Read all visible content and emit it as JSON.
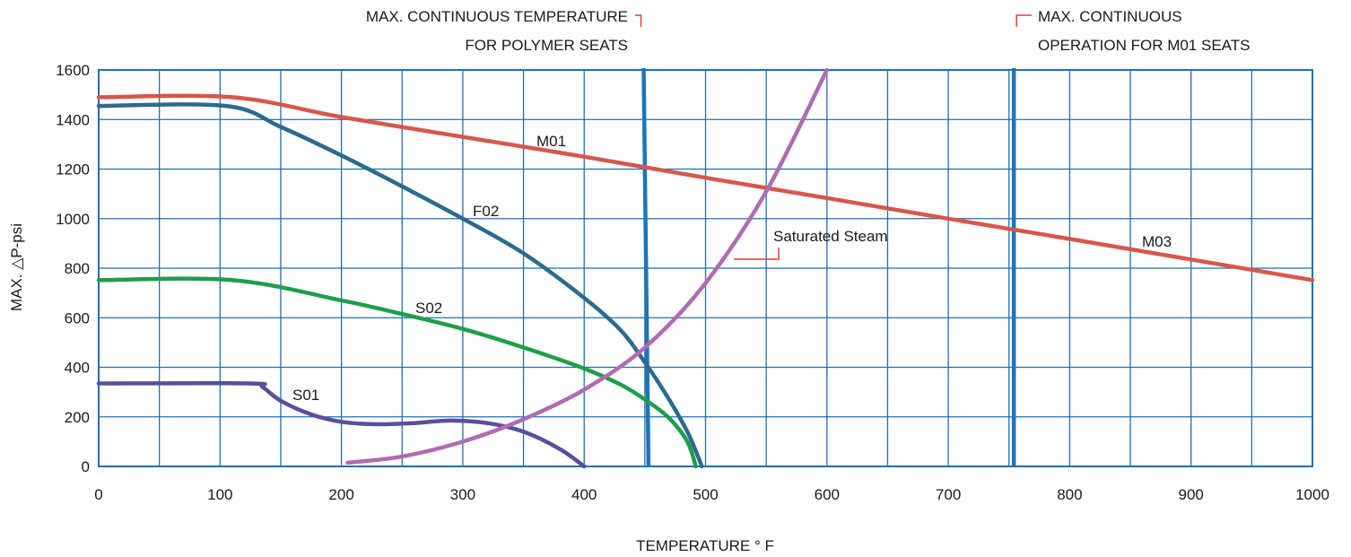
{
  "chart_data": {
    "type": "line",
    "xlabel": "TEMPERATURE ° F",
    "ylabel": "MAX. △P-psi",
    "xlim": [
      0,
      1000
    ],
    "ylim": [
      0,
      1600
    ],
    "x_ticks": [
      "0",
      "100",
      "200",
      "300",
      "400",
      "500",
      "600",
      "700",
      "800",
      "900",
      "1000"
    ],
    "y_ticks": [
      "0",
      "200",
      "400",
      "600",
      "800",
      "1000",
      "1200",
      "1400",
      "1600"
    ],
    "x_grid_step": 50,
    "y_grid_step": 200,
    "grid": true,
    "colors": {
      "grid": "#1f6fb2",
      "frame": "#1f6fb2",
      "vline": "#1b75bb",
      "leader": "#d9443a"
    },
    "series": [
      {
        "name": "M01",
        "color": "#d6574a",
        "points": [
          [
            0,
            1490
          ],
          [
            110,
            1490
          ],
          [
            200,
            1410
          ],
          [
            300,
            1330
          ],
          [
            400,
            1250
          ],
          [
            500,
            1165
          ],
          [
            600,
            1083
          ],
          [
            700,
            1000
          ],
          [
            800,
            918
          ],
          [
            900,
            835
          ],
          [
            1000,
            752
          ]
        ]
      },
      {
        "name": "F02",
        "color": "#2c6a8f",
        "points": [
          [
            0,
            1455
          ],
          [
            105,
            1455
          ],
          [
            150,
            1370
          ],
          [
            200,
            1255
          ],
          [
            250,
            1130
          ],
          [
            300,
            1000
          ],
          [
            350,
            860
          ],
          [
            400,
            680
          ],
          [
            430,
            550
          ],
          [
            450,
            420
          ],
          [
            470,
            270
          ],
          [
            485,
            140
          ],
          [
            493,
            50
          ],
          [
            497,
            0
          ]
        ]
      },
      {
        "name": "S02",
        "color": "#1e9e4a",
        "points": [
          [
            0,
            752
          ],
          [
            110,
            752
          ],
          [
            200,
            670
          ],
          [
            250,
            615
          ],
          [
            300,
            555
          ],
          [
            350,
            480
          ],
          [
            400,
            395
          ],
          [
            430,
            330
          ],
          [
            450,
            270
          ],
          [
            470,
            195
          ],
          [
            485,
            100
          ],
          [
            492,
            0
          ]
        ]
      },
      {
        "name": "S01",
        "color": "#5a4e9e",
        "points": [
          [
            0,
            335
          ],
          [
            125,
            335
          ],
          [
            135,
            320
          ],
          [
            150,
            265
          ],
          [
            175,
            210
          ],
          [
            200,
            180
          ],
          [
            230,
            170
          ],
          [
            260,
            175
          ],
          [
            290,
            185
          ],
          [
            320,
            175
          ],
          [
            350,
            140
          ],
          [
            380,
            70
          ],
          [
            400,
            0
          ]
        ]
      },
      {
        "name": "Saturated Steam",
        "color": "#b06bb3",
        "points": [
          [
            205,
            15
          ],
          [
            250,
            40
          ],
          [
            300,
            100
          ],
          [
            350,
            190
          ],
          [
            400,
            310
          ],
          [
            450,
            480
          ],
          [
            500,
            740
          ],
          [
            550,
            1110
          ],
          [
            600,
            1600
          ]
        ]
      }
    ],
    "vertical_lines": [
      {
        "x_top": 449,
        "x_bottom": 453
      },
      {
        "x_top": 754,
        "x_bottom": 754
      }
    ],
    "annotations": {
      "polymer_line1": "MAX. CONTINUOUS TEMPERATURE",
      "polymer_line2": "FOR POLYMER SEATS",
      "m01_line1": "MAX. CONTINUOUS",
      "m01_line2": "OPERATION FOR M01 SEATS",
      "m01_label": "M01",
      "m03_label": "M03",
      "f02_label": "F02",
      "s02_label": "S02",
      "s01_label": "S01",
      "steam_label": "Saturated Steam"
    }
  }
}
